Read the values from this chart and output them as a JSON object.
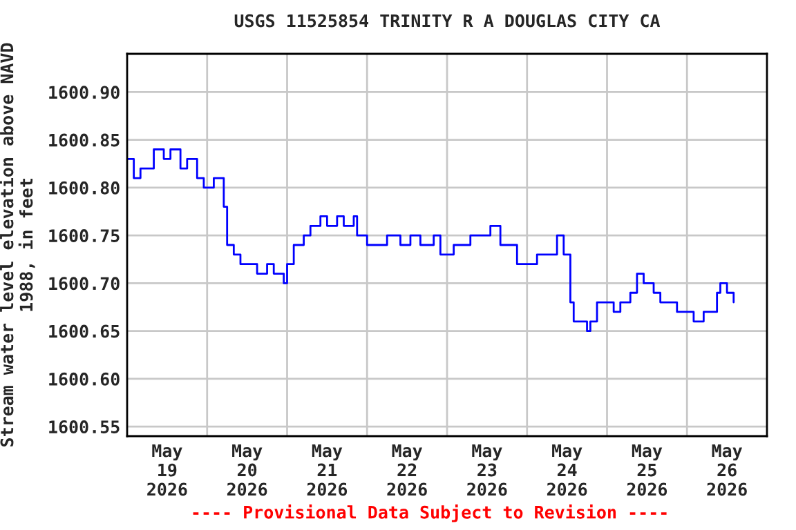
{
  "chart_data": {
    "type": "step",
    "title": "USGS 11525854 TRINITY R A DOUGLAS CITY CA",
    "ylabel": "Stream water level elevation above NAVD\n1988, in feet",
    "x": [
      "2026-05-19T00:00",
      "2026-05-19T02:00",
      "2026-05-19T04:00",
      "2026-05-19T07:00",
      "2026-05-19T08:00",
      "2026-05-19T11:00",
      "2026-05-19T13:00",
      "2026-05-19T16:00",
      "2026-05-19T18:00",
      "2026-05-19T21:00",
      "2026-05-19T23:00",
      "2026-05-20T02:00",
      "2026-05-20T04:00",
      "2026-05-20T05:00",
      "2026-05-20T06:00",
      "2026-05-20T08:00",
      "2026-05-20T10:00",
      "2026-05-20T13:00",
      "2026-05-20T15:00",
      "2026-05-20T18:00",
      "2026-05-20T20:00",
      "2026-05-20T23:00",
      "2026-05-21T00:00",
      "2026-05-21T02:00",
      "2026-05-21T05:00",
      "2026-05-21T07:00",
      "2026-05-21T10:00",
      "2026-05-21T12:00",
      "2026-05-21T15:00",
      "2026-05-21T17:00",
      "2026-05-21T20:00",
      "2026-05-21T21:00",
      "2026-05-22T00:00",
      "2026-05-22T03:00",
      "2026-05-22T06:00",
      "2026-05-22T10:00",
      "2026-05-22T13:00",
      "2026-05-22T16:00",
      "2026-05-22T20:00",
      "2026-05-22T22:00",
      "2026-05-23T02:00",
      "2026-05-23T05:00",
      "2026-05-23T07:00",
      "2026-05-23T11:00",
      "2026-05-23T13:00",
      "2026-05-23T16:00",
      "2026-05-23T18:00",
      "2026-05-23T21:00",
      "2026-05-24T00:00",
      "2026-05-24T03:00",
      "2026-05-24T07:00",
      "2026-05-24T09:00",
      "2026-05-24T11:00",
      "2026-05-24T13:00",
      "2026-05-24T14:00",
      "2026-05-24T16:00",
      "2026-05-24T18:00",
      "2026-05-24T19:00",
      "2026-05-24T21:00",
      "2026-05-24T23:00",
      "2026-05-25T02:00",
      "2026-05-25T04:00",
      "2026-05-25T07:00",
      "2026-05-25T09:00",
      "2026-05-25T11:00",
      "2026-05-25T14:00",
      "2026-05-25T16:00",
      "2026-05-25T19:00",
      "2026-05-25T21:00",
      "2026-05-26T00:00",
      "2026-05-26T02:00",
      "2026-05-26T05:00",
      "2026-05-26T07:00",
      "2026-05-26T09:00",
      "2026-05-26T10:00",
      "2026-05-26T12:00",
      "2026-05-26T14:00"
    ],
    "series": [
      {
        "color": "#0000ff",
        "values": [
          1600.83,
          1600.81,
          1600.82,
          1600.82,
          1600.84,
          1600.83,
          1600.84,
          1600.82,
          1600.83,
          1600.81,
          1600.8,
          1600.81,
          1600.81,
          1600.78,
          1600.74,
          1600.73,
          1600.72,
          1600.72,
          1600.71,
          1600.72,
          1600.71,
          1600.7,
          1600.72,
          1600.74,
          1600.75,
          1600.76,
          1600.77,
          1600.76,
          1600.77,
          1600.76,
          1600.77,
          1600.75,
          1600.74,
          1600.74,
          1600.75,
          1600.74,
          1600.75,
          1600.74,
          1600.75,
          1600.73,
          1600.74,
          1600.74,
          1600.75,
          1600.75,
          1600.76,
          1600.74,
          1600.74,
          1600.72,
          1600.72,
          1600.73,
          1600.73,
          1600.75,
          1600.73,
          1600.68,
          1600.66,
          1600.66,
          1600.65,
          1600.66,
          1600.68,
          1600.68,
          1600.67,
          1600.68,
          1600.69,
          1600.71,
          1600.7,
          1600.69,
          1600.68,
          1600.68,
          1600.67,
          1600.67,
          1600.66,
          1600.67,
          1600.67,
          1600.69,
          1600.7,
          1600.69,
          1600.68
        ]
      }
    ],
    "xlim": [
      "2026-05-19T00:00",
      "2026-05-27T00:00"
    ],
    "xticks": [
      {
        "value": "2026-05-19T12:00",
        "label": "May\n19\n2026"
      },
      {
        "value": "2026-05-20T00:00",
        "label": null
      },
      {
        "value": "2026-05-20T12:00",
        "label": "May\n20\n2026"
      },
      {
        "value": "2026-05-21T00:00",
        "label": null
      },
      {
        "value": "2026-05-21T12:00",
        "label": "May\n21\n2026"
      },
      {
        "value": "2026-05-22T00:00",
        "label": null
      },
      {
        "value": "2026-05-22T12:00",
        "label": "May\n22\n2026"
      },
      {
        "value": "2026-05-23T00:00",
        "label": null
      },
      {
        "value": "2026-05-23T12:00",
        "label": "May\n23\n2026"
      },
      {
        "value": "2026-05-24T00:00",
        "label": null
      },
      {
        "value": "2026-05-24T12:00",
        "label": "May\n24\n2026"
      },
      {
        "value": "2026-05-25T00:00",
        "label": null
      },
      {
        "value": "2026-05-25T12:00",
        "label": "May\n25\n2026"
      },
      {
        "value": "2026-05-26T00:00",
        "label": null
      },
      {
        "value": "2026-05-26T12:00",
        "label": "May\n26\n2026"
      }
    ],
    "ylim": [
      1600.54,
      1600.94
    ],
    "yticks": [
      {
        "value": 1600.55,
        "label": "1600.55"
      },
      {
        "value": 1600.6,
        "label": "1600.60"
      },
      {
        "value": 1600.65,
        "label": "1600.65"
      },
      {
        "value": 1600.7,
        "label": "1600.70"
      },
      {
        "value": 1600.75,
        "label": "1600.75"
      },
      {
        "value": 1600.8,
        "label": "1600.80"
      },
      {
        "value": 1600.85,
        "label": "1600.85"
      },
      {
        "value": 1600.9,
        "label": "1600.90"
      }
    ],
    "grid": true,
    "annotations": [
      "---- Provisional Data Subject to Revision ----"
    ]
  }
}
